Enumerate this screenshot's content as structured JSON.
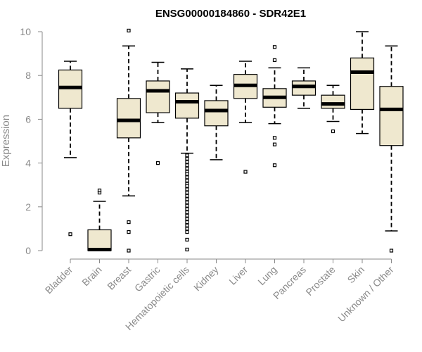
{
  "chart_data": {
    "type": "boxplot",
    "title": "ENSG00000184860 - SDR42E1",
    "xlabel": "",
    "ylabel": "Expression",
    "ylim": [
      0,
      10
    ],
    "yticks": [
      0,
      2,
      4,
      6,
      8,
      10
    ],
    "colors": {
      "box_fill": "#efe8cf",
      "median": "#000000",
      "axis": "#8a8a8a"
    },
    "categories": [
      "Bladder",
      "Brain",
      "Breast",
      "Gastric",
      "Hematopoietic cells",
      "Kidney",
      "Liver",
      "Lung",
      "Pancreas",
      "Prostate",
      "Skin",
      "Unknown / Other"
    ],
    "boxes": [
      {
        "label": "Bladder",
        "q1": 6.5,
        "median": 7.45,
        "q3": 8.25,
        "whisker_low": 4.25,
        "whisker_high": 8.65,
        "outliers": [
          0.75
        ]
      },
      {
        "label": "Brain",
        "q1": 0.0,
        "median": 0.05,
        "q3": 0.95,
        "whisker_low": 0.0,
        "whisker_high": 2.25,
        "outliers": [
          2.65,
          2.75
        ]
      },
      {
        "label": "Breast",
        "q1": 5.15,
        "median": 5.95,
        "q3": 6.95,
        "whisker_low": 2.5,
        "whisker_high": 9.35,
        "outliers": [
          10.05,
          1.3,
          0.85,
          0.0
        ]
      },
      {
        "label": "Gastric",
        "q1": 6.3,
        "median": 7.3,
        "q3": 7.75,
        "whisker_low": 5.85,
        "whisker_high": 8.6,
        "outliers": [
          4.0
        ]
      },
      {
        "label": "Hematopoietic cells",
        "q1": 6.05,
        "median": 6.8,
        "q3": 7.2,
        "whisker_low": 4.45,
        "whisker_high": 8.3,
        "outliers": [
          4.35,
          4.2,
          4.05,
          3.9,
          3.75,
          3.6,
          3.5,
          3.35,
          3.2,
          3.05,
          2.95,
          2.8,
          2.65,
          2.5,
          2.35,
          2.2,
          2.05,
          1.9,
          1.75,
          1.6,
          1.45,
          1.3,
          1.15,
          1.0,
          0.85,
          0.5,
          0.05
        ]
      },
      {
        "label": "Kidney",
        "q1": 5.7,
        "median": 6.4,
        "q3": 6.85,
        "whisker_low": 4.15,
        "whisker_high": 7.55,
        "outliers": []
      },
      {
        "label": "Liver",
        "q1": 6.95,
        "median": 7.55,
        "q3": 8.05,
        "whisker_low": 5.85,
        "whisker_high": 8.65,
        "outliers": [
          3.6
        ]
      },
      {
        "label": "Lung",
        "q1": 6.55,
        "median": 7.0,
        "q3": 7.4,
        "whisker_low": 5.8,
        "whisker_high": 8.35,
        "outliers": [
          9.3,
          8.7,
          5.15,
          4.85,
          3.9
        ]
      },
      {
        "label": "Pancreas",
        "q1": 7.1,
        "median": 7.5,
        "q3": 7.75,
        "whisker_low": 6.5,
        "whisker_high": 8.35,
        "outliers": []
      },
      {
        "label": "Prostate",
        "q1": 6.5,
        "median": 6.7,
        "q3": 7.1,
        "whisker_low": 5.9,
        "whisker_high": 7.55,
        "outliers": [
          5.45
        ]
      },
      {
        "label": "Skin",
        "q1": 6.45,
        "median": 8.15,
        "q3": 8.8,
        "whisker_low": 5.35,
        "whisker_high": 10.0,
        "outliers": []
      },
      {
        "label": "Unknown / Other",
        "q1": 4.8,
        "median": 6.45,
        "q3": 7.5,
        "whisker_low": 0.9,
        "whisker_high": 9.35,
        "outliers": [
          0.0
        ]
      }
    ]
  }
}
